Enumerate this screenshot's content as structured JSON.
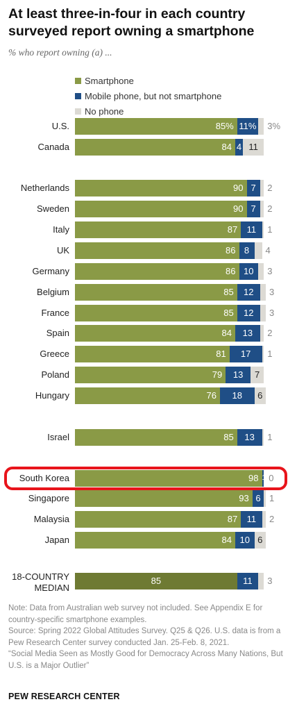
{
  "colors": {
    "smartphone": "#8a9a46",
    "smartphone_median": "#6e7a33",
    "mobile_not_smart": "#1f4e86",
    "no_phone": "#dcdad4",
    "highlight": "#e8141b"
  },
  "chart_data": {
    "type": "bar",
    "orientation": "horizontal",
    "stacked": true,
    "title": "At least three-in-four in each country surveyed report owning a smartphone",
    "subtitle": "% who report owning (a) ...",
    "legend": [
      "Smartphone",
      "Mobile phone, but not smartphone",
      "No phone"
    ],
    "series": [
      {
        "name": "Smartphone",
        "values": [
          85,
          84,
          90,
          90,
          87,
          86,
          86,
          85,
          85,
          84,
          81,
          79,
          76,
          85,
          98,
          93,
          87,
          84,
          85
        ]
      },
      {
        "name": "Mobile phone, but not smartphone",
        "values": [
          11,
          4,
          7,
          7,
          11,
          8,
          10,
          12,
          12,
          13,
          17,
          13,
          18,
          13,
          1,
          6,
          11,
          10,
          11
        ]
      },
      {
        "name": "No phone",
        "values": [
          3,
          11,
          2,
          2,
          1,
          4,
          3,
          3,
          3,
          2,
          1,
          7,
          6,
          1,
          0,
          1,
          2,
          6,
          3
        ]
      }
    ],
    "rows": [
      {
        "country": "U.S.",
        "smartphone": 85,
        "mobile": 11,
        "none": 3,
        "smartphone_label": "85%",
        "mobile_label": "11%",
        "none_label": "3%"
      },
      {
        "country": "Canada",
        "smartphone": 84,
        "mobile": 4,
        "none": 11,
        "smartphone_label": "84",
        "mobile_label": "4",
        "none_label": "11"
      },
      {
        "country": "Netherlands",
        "smartphone": 90,
        "mobile": 7,
        "none": 2,
        "smartphone_label": "90",
        "mobile_label": "7",
        "none_label": "2"
      },
      {
        "country": "Sweden",
        "smartphone": 90,
        "mobile": 7,
        "none": 2,
        "smartphone_label": "90",
        "mobile_label": "7",
        "none_label": "2"
      },
      {
        "country": "Italy",
        "smartphone": 87,
        "mobile": 11,
        "none": 1,
        "smartphone_label": "87",
        "mobile_label": "11",
        "none_label": "1"
      },
      {
        "country": "UK",
        "smartphone": 86,
        "mobile": 8,
        "none": 4,
        "smartphone_label": "86",
        "mobile_label": "8",
        "none_label": "4"
      },
      {
        "country": "Germany",
        "smartphone": 86,
        "mobile": 10,
        "none": 3,
        "smartphone_label": "86",
        "mobile_label": "10",
        "none_label": "3"
      },
      {
        "country": "Belgium",
        "smartphone": 85,
        "mobile": 12,
        "none": 3,
        "smartphone_label": "85",
        "mobile_label": "12",
        "none_label": "3"
      },
      {
        "country": "France",
        "smartphone": 85,
        "mobile": 12,
        "none": 3,
        "smartphone_label": "85",
        "mobile_label": "12",
        "none_label": "3"
      },
      {
        "country": "Spain",
        "smartphone": 84,
        "mobile": 13,
        "none": 2,
        "smartphone_label": "84",
        "mobile_label": "13",
        "none_label": "2"
      },
      {
        "country": "Greece",
        "smartphone": 81,
        "mobile": 17,
        "none": 1,
        "smartphone_label": "81",
        "mobile_label": "17",
        "none_label": "1"
      },
      {
        "country": "Poland",
        "smartphone": 79,
        "mobile": 13,
        "none": 7,
        "smartphone_label": "79",
        "mobile_label": "13",
        "none_label": "7"
      },
      {
        "country": "Hungary",
        "smartphone": 76,
        "mobile": 18,
        "none": 6,
        "smartphone_label": "76",
        "mobile_label": "18",
        "none_label": "6"
      },
      {
        "country": "Israel",
        "smartphone": 85,
        "mobile": 13,
        "none": 1,
        "smartphone_label": "85",
        "mobile_label": "13",
        "none_label": "1"
      },
      {
        "country": "South Korea",
        "smartphone": 98,
        "mobile": 1,
        "none": 0,
        "smartphone_label": "98",
        "mobile_label": "1",
        "none_label": "0",
        "highlighted": true
      },
      {
        "country": "Singapore",
        "smartphone": 93,
        "mobile": 6,
        "none": 1,
        "smartphone_label": "93",
        "mobile_label": "6",
        "none_label": "1"
      },
      {
        "country": "Malaysia",
        "smartphone": 87,
        "mobile": 11,
        "none": 2,
        "smartphone_label": "87",
        "mobile_label": "11",
        "none_label": "2"
      },
      {
        "country": "Japan",
        "smartphone": 84,
        "mobile": 10,
        "none": 6,
        "smartphone_label": "84",
        "mobile_label": "10",
        "none_label": "6"
      },
      {
        "country": "18-COUNTRY MEDIAN",
        "smartphone": 85,
        "mobile": 11,
        "none": 3,
        "smartphone_label": "85",
        "mobile_label": "11",
        "none_label": "3",
        "median": true
      }
    ],
    "xlim": [
      0,
      100
    ],
    "grid": false,
    "legend_position": "top-left"
  },
  "notes": {
    "note": "Note: Data from Australian web survey not included. See Appendix E for country-specific smartphone examples.",
    "source": "Source: Spring 2022 Global Attitudes Survey. Q25 & Q26. U.S. data is from a Pew Research Center survey conducted Jan. 25-Feb. 8, 2021.",
    "report": "“Social Media Seen as Mostly Good for Democracy Across Many Nations, But U.S. is a Major Outlier”"
  },
  "footer": "PEW RESEARCH CENTER"
}
